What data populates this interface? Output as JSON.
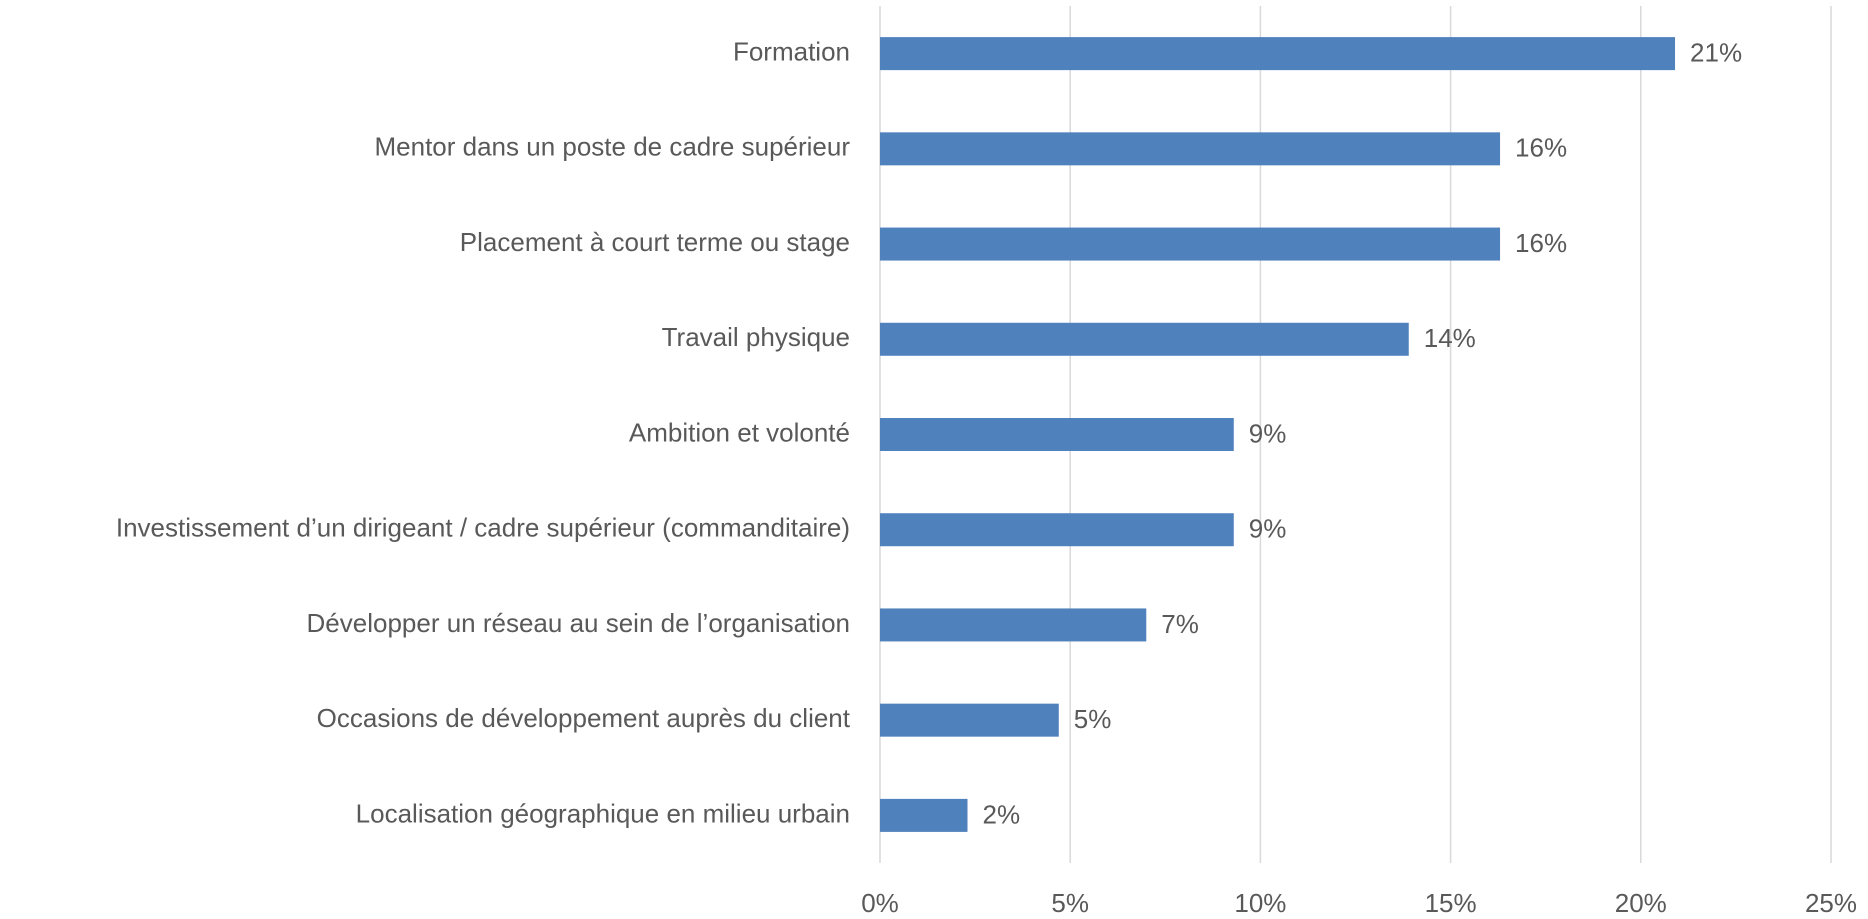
{
  "chart_data": {
    "type": "bar",
    "orientation": "horizontal",
    "categories": [
      "Formation",
      "Mentor dans un poste de cadre supérieur",
      "Placement à court terme ou stage",
      "Travail physique",
      "Ambition et volonté",
      "Investissement d’un dirigeant / cadre supérieur (commanditaire)",
      "Développer un réseau au sein de l’organisation",
      "Occasions de développement auprès du client",
      "Localisation géographique en milieu urbain"
    ],
    "values": [
      20.9,
      16.3,
      16.3,
      13.9,
      9.3,
      9.3,
      7.0,
      4.7,
      2.3
    ],
    "value_labels": [
      "21%",
      "16%",
      "16%",
      "14%",
      "9%",
      "9%",
      "7%",
      "5%",
      "2%"
    ],
    "color": "#4f81bd",
    "xlim": [
      0,
      25
    ],
    "xticks": [
      {
        "value": 0,
        "label": "0%"
      },
      {
        "value": 5,
        "label": "5%"
      },
      {
        "value": 10,
        "label": "10%"
      },
      {
        "value": 15,
        "label": "15%"
      },
      {
        "value": 20,
        "label": "20%"
      },
      {
        "value": 25,
        "label": "25%"
      }
    ],
    "grid": true
  }
}
